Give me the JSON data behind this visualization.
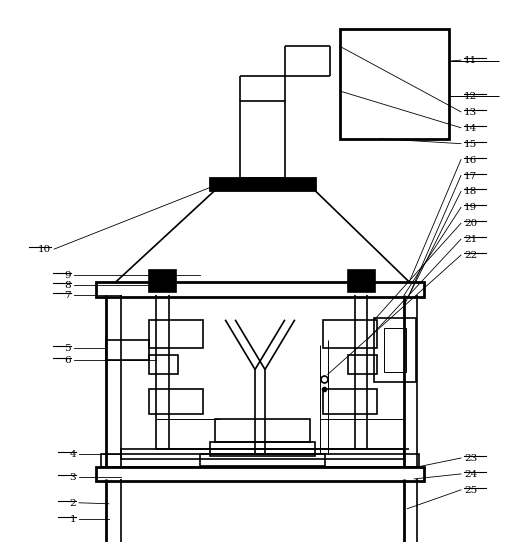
{
  "fig_width": 5.29,
  "fig_height": 5.43,
  "dpi": 100,
  "bg_color": "#ffffff",
  "line_color": "#000000",
  "lw_thick": 2.0,
  "lw_med": 1.2,
  "lw_thin": 0.7
}
